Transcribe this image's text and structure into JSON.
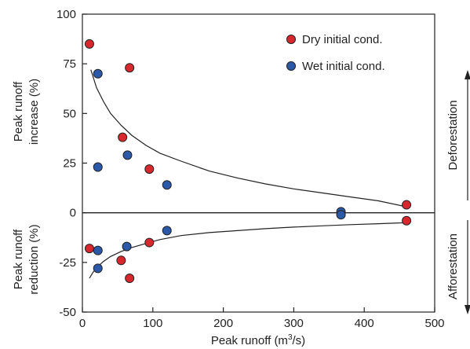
{
  "chart_data": {
    "type": "scatter",
    "xlabel_main": "Peak runoff (m",
    "xlabel_sup": "3",
    "xlabel_end": "/s)",
    "ylabel_top_line1": "Peak runoff",
    "ylabel_top_line2": "increase (%)",
    "ylabel_bottom_line1": "Peak runoff",
    "ylabel_bottom_line2": "reduction (%)",
    "right_label_top": "Deforestation",
    "right_label_bottom": "Afforestation",
    "xlim": [
      0,
      500
    ],
    "ylim": [
      -50,
      100
    ],
    "x_ticks": [
      0,
      100,
      200,
      300,
      400,
      500
    ],
    "y_ticks": [
      -50,
      -25,
      0,
      25,
      50,
      75,
      100
    ],
    "grid": false,
    "legend_position": "top-right",
    "series": [
      {
        "name": "Dry initial cond.",
        "color": "#d9272e",
        "points": [
          {
            "x": 10,
            "y": 85
          },
          {
            "x": 67,
            "y": 73
          },
          {
            "x": 57,
            "y": 38
          },
          {
            "x": 95,
            "y": 22
          },
          {
            "x": 460,
            "y": 4
          },
          {
            "x": 460,
            "y": -4
          },
          {
            "x": 95,
            "y": -15
          },
          {
            "x": 10,
            "y": -18
          },
          {
            "x": 55,
            "y": -24
          },
          {
            "x": 67,
            "y": -33
          }
        ]
      },
      {
        "name": "Wet initial cond.",
        "color": "#2b59a8",
        "points": [
          {
            "x": 22,
            "y": 70
          },
          {
            "x": 64,
            "y": 29
          },
          {
            "x": 22,
            "y": 23
          },
          {
            "x": 120,
            "y": 14
          },
          {
            "x": 367,
            "y": 0.5
          },
          {
            "x": 367,
            "y": -1
          },
          {
            "x": 120,
            "y": -9
          },
          {
            "x": 63,
            "y": -17
          },
          {
            "x": 22,
            "y": -19
          },
          {
            "x": 22,
            "y": -28
          }
        ]
      }
    ],
    "fit_curves": [
      {
        "points": [
          [
            12,
            72
          ],
          [
            20,
            63
          ],
          [
            30,
            56
          ],
          [
            40,
            50
          ],
          [
            55,
            44
          ],
          [
            70,
            39
          ],
          [
            90,
            34
          ],
          [
            110,
            30
          ],
          [
            140,
            26
          ],
          [
            180,
            21
          ],
          [
            220,
            17.5
          ],
          [
            260,
            14.5
          ],
          [
            300,
            12
          ],
          [
            340,
            10
          ],
          [
            380,
            8
          ],
          [
            420,
            6
          ],
          [
            460,
            3
          ]
        ]
      },
      {
        "points": [
          [
            10,
            -33
          ],
          [
            15,
            -30
          ],
          [
            22,
            -27
          ],
          [
            30,
            -24.5
          ],
          [
            40,
            -22
          ],
          [
            55,
            -19.5
          ],
          [
            70,
            -17.5
          ],
          [
            90,
            -15.5
          ],
          [
            110,
            -13.5
          ],
          [
            140,
            -11.5
          ],
          [
            180,
            -10
          ],
          [
            220,
            -9
          ],
          [
            260,
            -8
          ],
          [
            300,
            -7.2
          ],
          [
            340,
            -6.6
          ],
          [
            380,
            -6
          ],
          [
            420,
            -5.5
          ],
          [
            460,
            -5
          ]
        ]
      }
    ]
  }
}
